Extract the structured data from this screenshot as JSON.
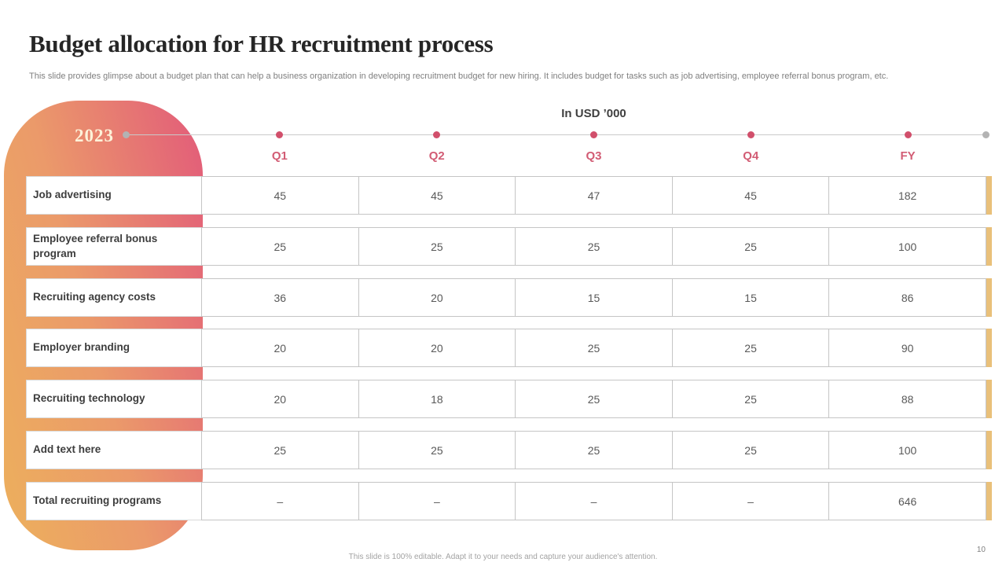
{
  "slide": {
    "title": "Budget allocation for HR recruitment process",
    "subtitle": "This slide provides glimpse about a budget plan that can help a business organization in developing recruitment budget for new hiring. It includes budget for tasks such as job advertising, employee referral bonus program, etc.",
    "year_badge": "2023",
    "units_label": "In USD ’000",
    "footer_note": "This slide is 100% editable. Adapt it to your needs and capture your audience's attention.",
    "page_number": "10"
  },
  "table": {
    "columns": [
      "Q1",
      "Q2",
      "Q3",
      "Q4",
      "FY"
    ],
    "rows": [
      {
        "label": "Job advertising",
        "values": [
          "45",
          "45",
          "47",
          "45",
          "182"
        ]
      },
      {
        "label": "Employee referral bonus program",
        "values": [
          "25",
          "25",
          "25",
          "25",
          "100"
        ]
      },
      {
        "label": "Recruiting agency costs",
        "values": [
          "36",
          "20",
          "15",
          "15",
          "86"
        ]
      },
      {
        "label": "Employer branding",
        "values": [
          "20",
          "20",
          "25",
          "25",
          "90"
        ]
      },
      {
        "label": "Recruiting technology",
        "values": [
          "20",
          "18",
          "25",
          "25",
          "88"
        ]
      },
      {
        "label": "Add text here",
        "values": [
          "25",
          "25",
          "25",
          "25",
          "100"
        ]
      },
      {
        "label": "Total recruiting programs",
        "values": [
          "–",
          "–",
          "–",
          "–",
          "646"
        ]
      }
    ]
  },
  "colors": {
    "gradient_start": "#ecb05c",
    "gradient_end": "#e25a7a",
    "accent_pink": "#d25c74",
    "strip_gold": "#e9c07a"
  }
}
